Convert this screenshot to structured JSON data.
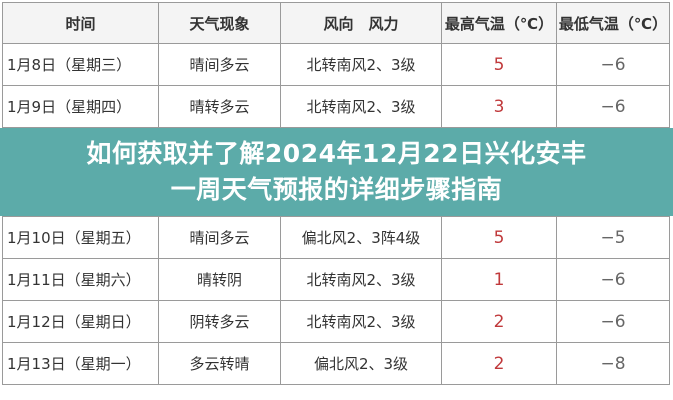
{
  "table": {
    "headers": [
      "时间",
      "天气现象",
      "风向　风力",
      "最高气温（℃）",
      "最低气温（℃）"
    ],
    "rows": [
      {
        "date": "1月8日（星期三）",
        "weather": "晴间多云",
        "wind": "北转南风2、3级",
        "high": "5",
        "low": "−6"
      },
      {
        "date": "1月9日（星期四）",
        "weather": "晴转多云",
        "wind": "北转南风2、3级",
        "high": "3",
        "low": "−6"
      },
      {
        "date": "1月10日（星期五）",
        "weather": "晴间多云",
        "wind": "偏北风2、3阵4级",
        "high": "5",
        "low": "−5"
      },
      {
        "date": "1月11日（星期六）",
        "weather": "晴转阴",
        "wind": "北转南风2、3级",
        "high": "1",
        "low": "−6"
      },
      {
        "date": "1月12日（星期日）",
        "weather": "阴转多云",
        "wind": "北转南风2、3级",
        "high": "2",
        "low": "−6"
      },
      {
        "date": "1月13日（星期一）",
        "weather": "多云转晴",
        "wind": "偏北风2、3级",
        "high": "2",
        "low": "−8"
      }
    ]
  },
  "overlay": {
    "line1": "如何获取并了解2024年12月22日兴化安丰",
    "line2": "一周天气预报的详细步骤指南"
  },
  "colors": {
    "overlay": "#4ea4a2",
    "high_temp": "#c0393b"
  }
}
